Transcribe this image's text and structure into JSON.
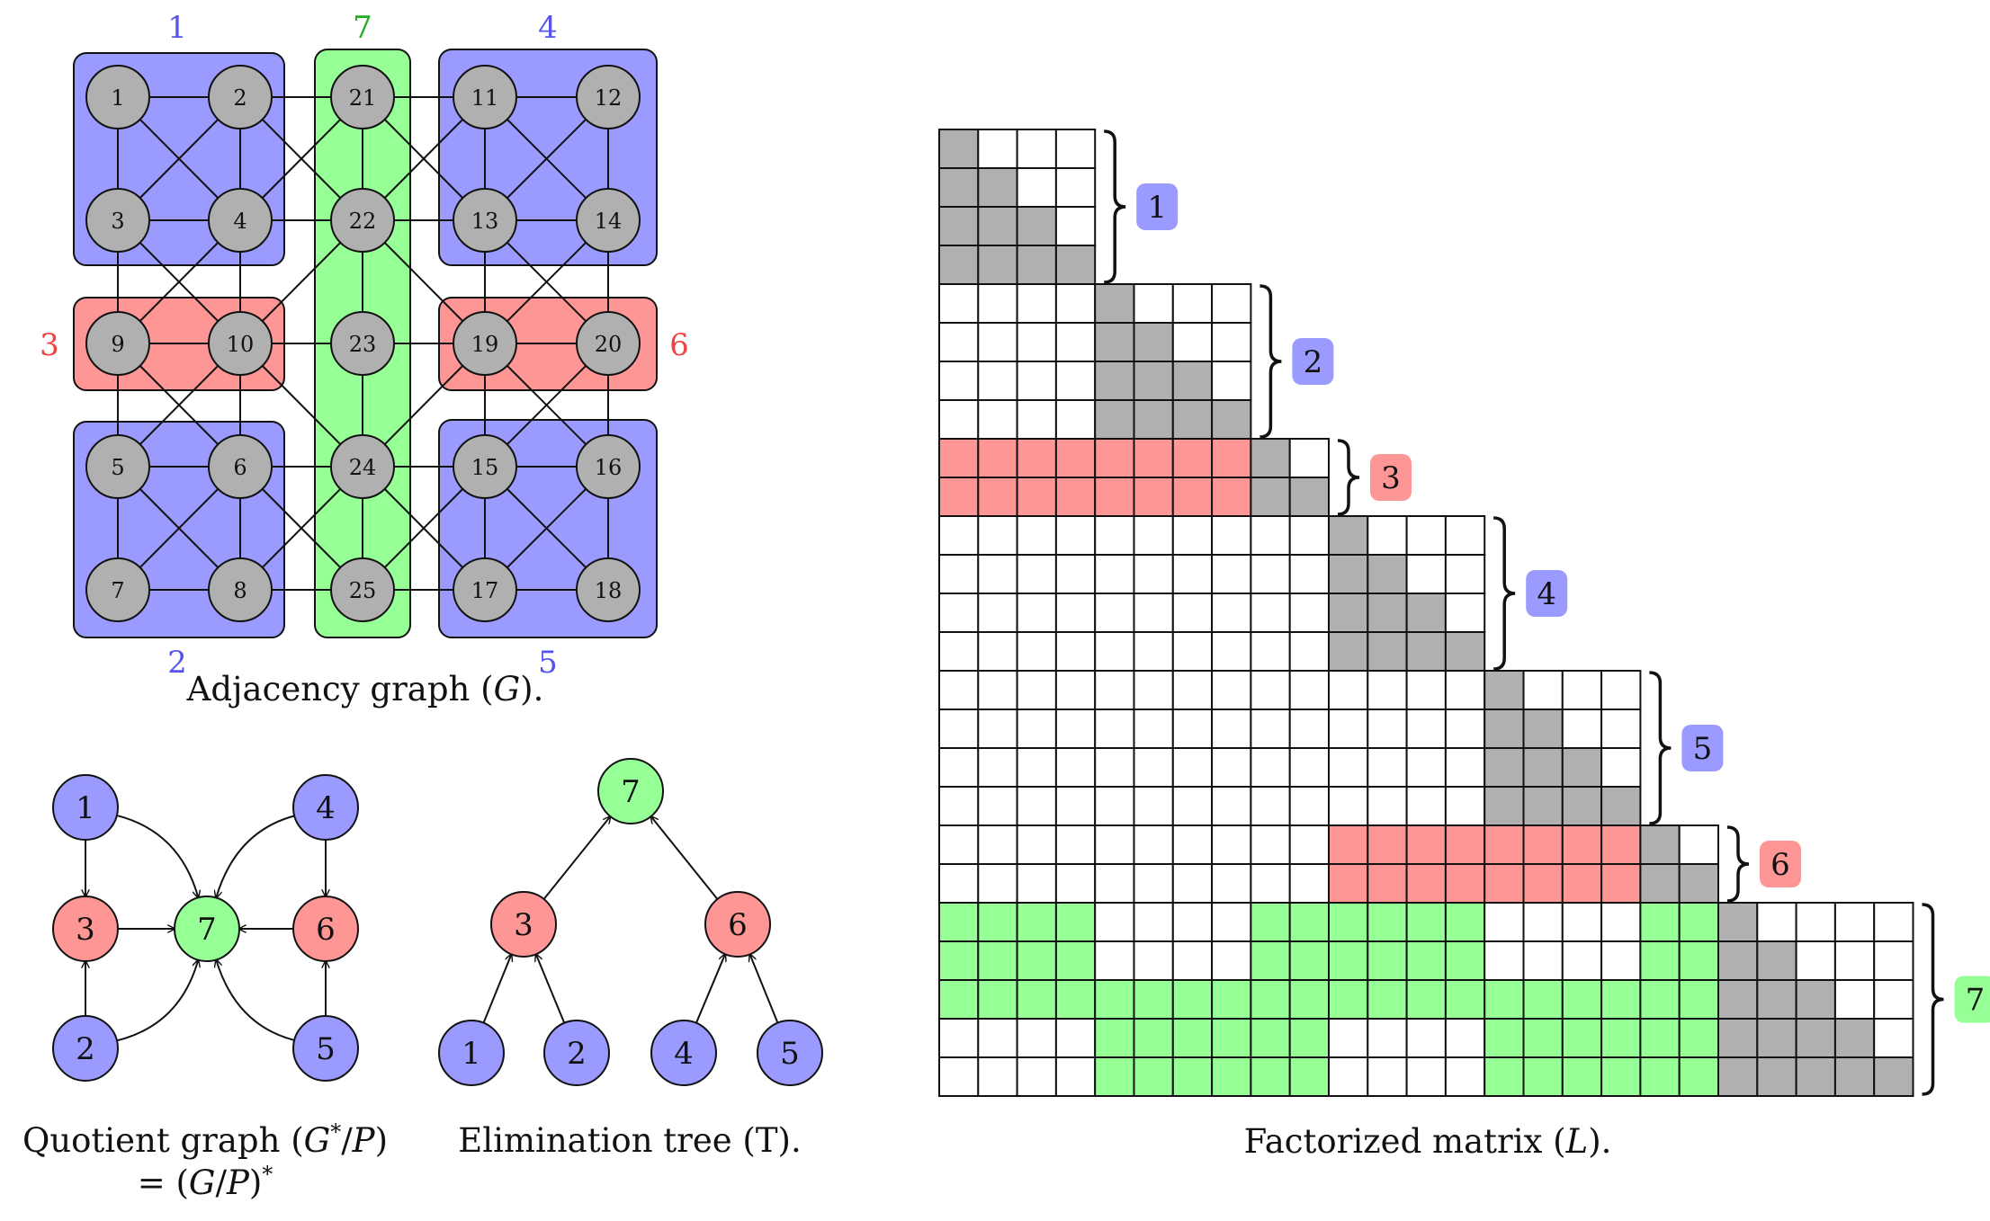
{
  "colors": {
    "blue": "#9b9bff",
    "red": "#ff9696",
    "green": "#96ff96",
    "gray": "#b0b0b0",
    "blue_text": "#5555ee",
    "red_text": "#ee4444",
    "green_text": "#22aa22"
  },
  "adjacency": {
    "caption_text": "Adjacency graph (",
    "caption_var": "G",
    "caption_end": ").",
    "groups": [
      {
        "id": "g1",
        "label": "1",
        "color": "blue",
        "nodes": [
          "1",
          "2",
          "3",
          "4"
        ]
      },
      {
        "id": "g2",
        "label": "2",
        "color": "blue",
        "nodes": [
          "5",
          "6",
          "7",
          "8"
        ]
      },
      {
        "id": "g3",
        "label": "3",
        "color": "red",
        "nodes": [
          "9",
          "10"
        ]
      },
      {
        "id": "g4",
        "label": "4",
        "color": "blue",
        "nodes": [
          "11",
          "12",
          "13",
          "14"
        ]
      },
      {
        "id": "g5",
        "label": "5",
        "color": "blue",
        "nodes": [
          "15",
          "16",
          "17",
          "18"
        ]
      },
      {
        "id": "g6",
        "label": "6",
        "color": "red",
        "nodes": [
          "19",
          "20"
        ]
      },
      {
        "id": "g7",
        "label": "7",
        "color": "green",
        "nodes": [
          "21",
          "22",
          "23",
          "24",
          "25"
        ]
      }
    ],
    "nodes": [
      {
        "id": "1",
        "label": "1"
      },
      {
        "id": "2",
        "label": "2"
      },
      {
        "id": "3",
        "label": "3"
      },
      {
        "id": "4",
        "label": "4"
      },
      {
        "id": "5",
        "label": "5"
      },
      {
        "id": "6",
        "label": "6"
      },
      {
        "id": "7",
        "label": "7"
      },
      {
        "id": "8",
        "label": "8"
      },
      {
        "id": "9",
        "label": "9"
      },
      {
        "id": "10",
        "label": "10"
      },
      {
        "id": "11",
        "label": "11"
      },
      {
        "id": "12",
        "label": "12"
      },
      {
        "id": "13",
        "label": "13"
      },
      {
        "id": "14",
        "label": "14"
      },
      {
        "id": "15",
        "label": "15"
      },
      {
        "id": "16",
        "label": "16"
      },
      {
        "id": "17",
        "label": "17"
      },
      {
        "id": "18",
        "label": "18"
      },
      {
        "id": "19",
        "label": "19"
      },
      {
        "id": "20",
        "label": "20"
      },
      {
        "id": "21",
        "label": "21"
      },
      {
        "id": "22",
        "label": "22"
      },
      {
        "id": "23",
        "label": "23"
      },
      {
        "id": "24",
        "label": "24"
      },
      {
        "id": "25",
        "label": "25"
      }
    ],
    "edges": [
      [
        "1",
        "2"
      ],
      [
        "1",
        "3"
      ],
      [
        "1",
        "4"
      ],
      [
        "2",
        "3"
      ],
      [
        "2",
        "4"
      ],
      [
        "3",
        "4"
      ],
      [
        "2",
        "21"
      ],
      [
        "2",
        "22"
      ],
      [
        "4",
        "21"
      ],
      [
        "4",
        "22"
      ],
      [
        "3",
        "9"
      ],
      [
        "3",
        "10"
      ],
      [
        "4",
        "9"
      ],
      [
        "4",
        "10"
      ],
      [
        "9",
        "10"
      ],
      [
        "9",
        "5"
      ],
      [
        "9",
        "6"
      ],
      [
        "10",
        "5"
      ],
      [
        "10",
        "6"
      ],
      [
        "10",
        "22"
      ],
      [
        "10",
        "23"
      ],
      [
        "10",
        "24"
      ],
      [
        "5",
        "6"
      ],
      [
        "5",
        "7"
      ],
      [
        "5",
        "8"
      ],
      [
        "6",
        "7"
      ],
      [
        "6",
        "8"
      ],
      [
        "7",
        "8"
      ],
      [
        "6",
        "24"
      ],
      [
        "6",
        "25"
      ],
      [
        "8",
        "24"
      ],
      [
        "8",
        "25"
      ],
      [
        "21",
        "22"
      ],
      [
        "22",
        "23"
      ],
      [
        "23",
        "24"
      ],
      [
        "24",
        "25"
      ],
      [
        "21",
        "11"
      ],
      [
        "21",
        "13"
      ],
      [
        "22",
        "11"
      ],
      [
        "22",
        "13"
      ],
      [
        "22",
        "19"
      ],
      [
        "23",
        "19"
      ],
      [
        "24",
        "19"
      ],
      [
        "24",
        "15"
      ],
      [
        "24",
        "17"
      ],
      [
        "25",
        "15"
      ],
      [
        "25",
        "17"
      ],
      [
        "11",
        "12"
      ],
      [
        "11",
        "13"
      ],
      [
        "11",
        "14"
      ],
      [
        "12",
        "13"
      ],
      [
        "12",
        "14"
      ],
      [
        "13",
        "14"
      ],
      [
        "13",
        "19"
      ],
      [
        "13",
        "20"
      ],
      [
        "14",
        "19"
      ],
      [
        "14",
        "20"
      ],
      [
        "19",
        "20"
      ],
      [
        "19",
        "15"
      ],
      [
        "19",
        "16"
      ],
      [
        "20",
        "15"
      ],
      [
        "20",
        "16"
      ],
      [
        "15",
        "16"
      ],
      [
        "15",
        "17"
      ],
      [
        "15",
        "18"
      ],
      [
        "16",
        "17"
      ],
      [
        "16",
        "18"
      ],
      [
        "17",
        "18"
      ]
    ]
  },
  "quotient": {
    "caption_line1": "Quotient graph (",
    "caption_var1": "G",
    "caption_star": "*",
    "caption_slash": "/",
    "caption_var2": "P",
    "caption_close": ")",
    "caption_line2_eq": "= (",
    "caption_line2_var1": "G",
    "caption_line2_slash": "/",
    "caption_line2_var2": "P",
    "caption_line2_close": ")",
    "caption_line2_star": "*",
    "nodes": [
      {
        "id": "1",
        "label": "1",
        "color": "blue"
      },
      {
        "id": "4",
        "label": "4",
        "color": "blue"
      },
      {
        "id": "3",
        "label": "3",
        "color": "red"
      },
      {
        "id": "7",
        "label": "7",
        "color": "green"
      },
      {
        "id": "6",
        "label": "6",
        "color": "red"
      },
      {
        "id": "2",
        "label": "2",
        "color": "blue"
      },
      {
        "id": "5",
        "label": "5",
        "color": "blue"
      }
    ],
    "edges": [
      [
        "1",
        "3"
      ],
      [
        "2",
        "3"
      ],
      [
        "3",
        "7"
      ],
      [
        "1",
        "7"
      ],
      [
        "2",
        "7"
      ],
      [
        "4",
        "6"
      ],
      [
        "5",
        "6"
      ],
      [
        "6",
        "7"
      ],
      [
        "4",
        "7"
      ],
      [
        "5",
        "7"
      ]
    ]
  },
  "etree": {
    "caption_text": "Elimination tree (T).",
    "nodes": [
      {
        "id": "7",
        "label": "7",
        "color": "green"
      },
      {
        "id": "3",
        "label": "3",
        "color": "red"
      },
      {
        "id": "6",
        "label": "6",
        "color": "red"
      },
      {
        "id": "1",
        "label": "1",
        "color": "blue"
      },
      {
        "id": "2",
        "label": "2",
        "color": "blue"
      },
      {
        "id": "4",
        "label": "4",
        "color": "blue"
      },
      {
        "id": "5",
        "label": "5",
        "color": "blue"
      }
    ],
    "edges": [
      [
        "3",
        "7"
      ],
      [
        "6",
        "7"
      ],
      [
        "1",
        "3"
      ],
      [
        "2",
        "3"
      ],
      [
        "4",
        "6"
      ],
      [
        "5",
        "6"
      ]
    ]
  },
  "matrix": {
    "caption_text": "Factorized matrix (",
    "caption_var": "L",
    "caption_end": ").",
    "size": 25,
    "blocks": [
      {
        "label": "1",
        "start": 0,
        "end": 4,
        "color": "blue"
      },
      {
        "label": "2",
        "start": 4,
        "end": 8,
        "color": "blue"
      },
      {
        "label": "3",
        "start": 8,
        "end": 10,
        "color": "red"
      },
      {
        "label": "4",
        "start": 10,
        "end": 14,
        "color": "blue"
      },
      {
        "label": "5",
        "start": 14,
        "end": 18,
        "color": "blue"
      },
      {
        "label": "6",
        "start": 18,
        "end": 20,
        "color": "red"
      },
      {
        "label": "7",
        "start": 20,
        "end": 25,
        "color": "green"
      }
    ],
    "fill_rows": [
      {
        "row": 8,
        "color": "red",
        "ranges": [
          [
            0,
            8
          ]
        ]
      },
      {
        "row": 9,
        "color": "red",
        "ranges": [
          [
            0,
            8
          ]
        ]
      },
      {
        "row": 18,
        "color": "red",
        "ranges": [
          [
            10,
            18
          ]
        ]
      },
      {
        "row": 19,
        "color": "red",
        "ranges": [
          [
            10,
            18
          ]
        ]
      },
      {
        "row": 20,
        "color": "green",
        "ranges": [
          [
            0,
            4
          ],
          [
            8,
            14
          ],
          [
            18,
            20
          ]
        ]
      },
      {
        "row": 21,
        "color": "green",
        "ranges": [
          [
            0,
            4
          ],
          [
            8,
            14
          ],
          [
            18,
            20
          ]
        ]
      },
      {
        "row": 22,
        "color": "green",
        "ranges": [
          [
            0,
            20
          ]
        ]
      },
      {
        "row": 23,
        "color": "green",
        "ranges": [
          [
            4,
            10
          ],
          [
            14,
            20
          ]
        ]
      },
      {
        "row": 24,
        "color": "green",
        "ranges": [
          [
            4,
            10
          ],
          [
            14,
            20
          ]
        ]
      }
    ]
  }
}
